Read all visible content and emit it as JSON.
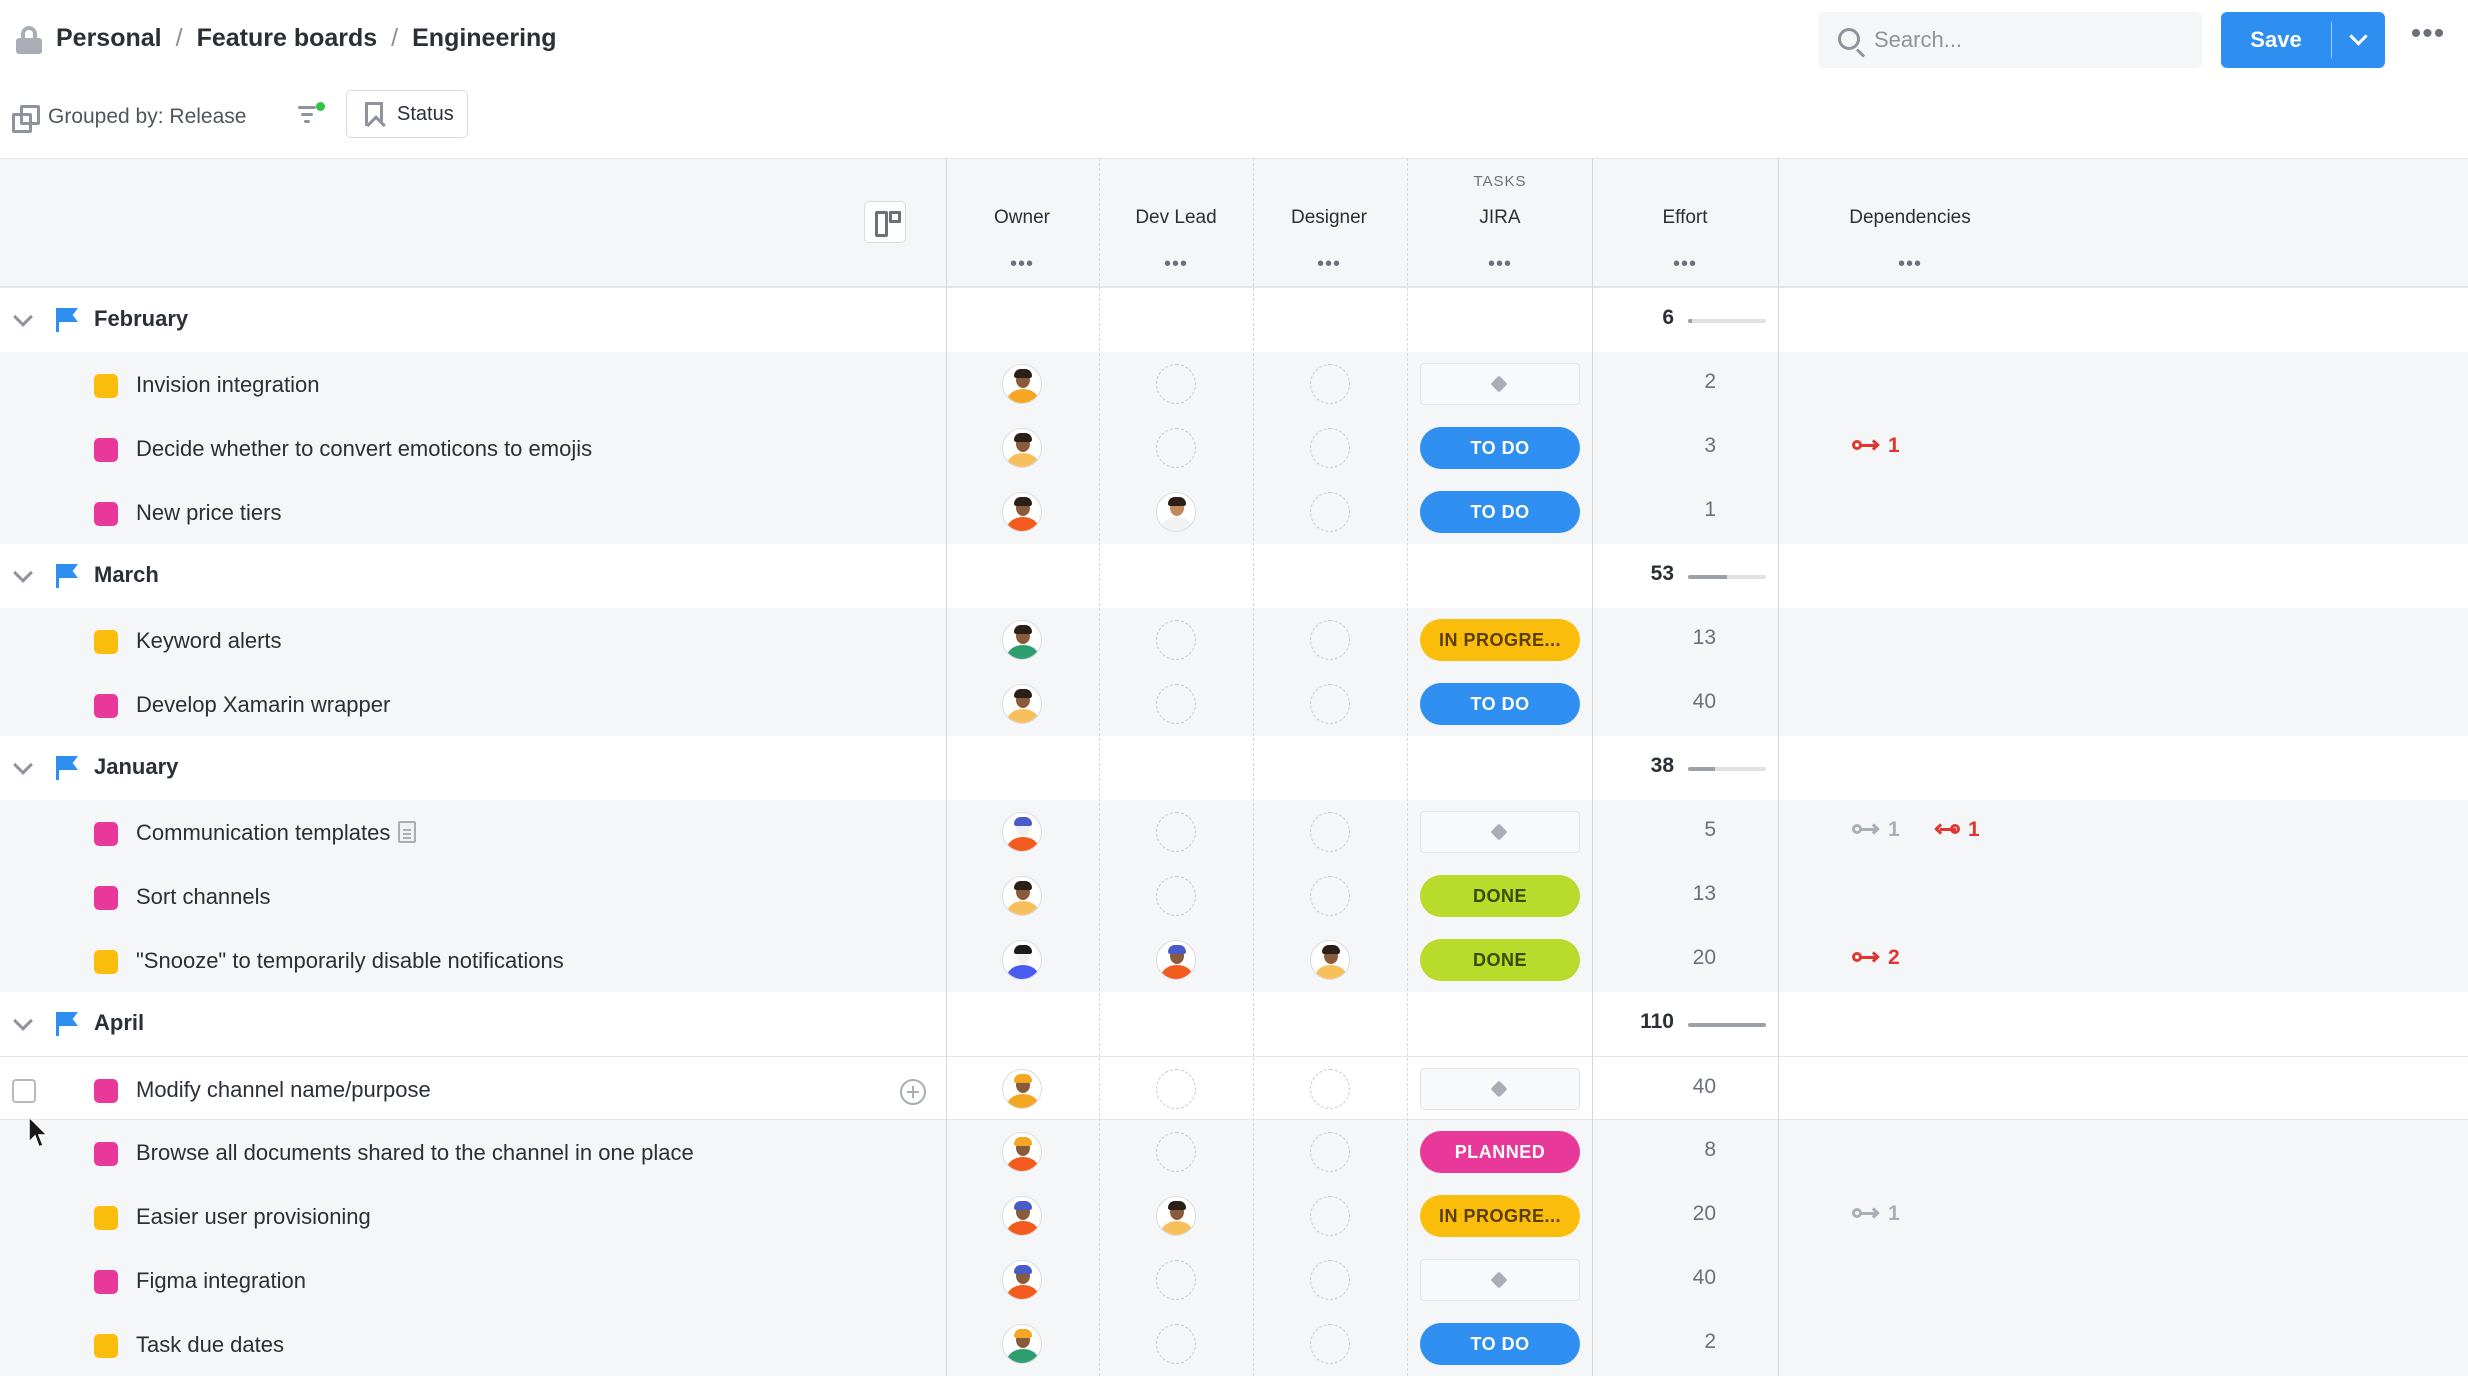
{
  "breadcrumb": [
    "Personal",
    "Feature boards",
    "Engineering"
  ],
  "search": {
    "placeholder": "Search...",
    "value": ""
  },
  "save_label": "Save",
  "toolbar": {
    "grouped_label": "Grouped by: Release",
    "status_label": "Status"
  },
  "columns": {
    "owner": "Owner",
    "dev_lead": "Dev Lead",
    "designer": "Designer",
    "tasks_group": "TASKS",
    "jira": "JIRA",
    "effort": "Effort",
    "dependencies": "Dependencies",
    "dots": "•••"
  },
  "colors": {
    "accent": "#2e8ff0",
    "pink_square": "#e8399b",
    "yellow_square": "#fbbd0c",
    "todo": "#2e8ff0",
    "in_progress": "#fbbd0c",
    "done": "#b9dc2c",
    "planned": "#e8399b",
    "dependency_red": "#e3342f",
    "dependency_gray": "#a8adb6"
  },
  "groups": [
    {
      "name": "February",
      "effort": "6",
      "effort_fraction": 0.05,
      "items": [
        {
          "name": "Invision integration",
          "color": "yellow",
          "owner": {
            "skin": "#8a5a3c",
            "shirt": "#f5a623",
            "hair": "#2b2018"
          },
          "dev_lead": null,
          "designer": null,
          "jira": null,
          "effort": "2",
          "deps": []
        },
        {
          "name": "Decide whether to convert emoticons to emojis",
          "color": "pink",
          "owner": {
            "skin": "#8a5a3c",
            "shirt": "#f7c05c",
            "hair": "#2b2018"
          },
          "dev_lead": null,
          "designer": null,
          "jira": "TO DO",
          "effort": "3",
          "deps": [
            {
              "dir": "out",
              "count": "1",
              "color": "red"
            }
          ]
        },
        {
          "name": "New price tiers",
          "color": "pink",
          "owner": {
            "skin": "#8a5a3c",
            "shirt": "#f25a1f",
            "hair": "#2b2018"
          },
          "dev_lead": {
            "skin": "#c08a5c",
            "shirt": "#f2f2f2",
            "hair": "#2b2018"
          },
          "designer": null,
          "jira": "TO DO",
          "effort": "1",
          "deps": []
        }
      ]
    },
    {
      "name": "March",
      "effort": "53",
      "effort_fraction": 0.5,
      "items": [
        {
          "name": "Keyword alerts",
          "color": "yellow",
          "owner": {
            "skin": "#8a5a3c",
            "shirt": "#2f9e6e",
            "hair": "#2b2018"
          },
          "dev_lead": null,
          "designer": null,
          "jira": "IN PROGRE...",
          "effort": "13",
          "deps": []
        },
        {
          "name": "Develop Xamarin wrapper",
          "color": "pink",
          "owner": {
            "skin": "#8a5a3c",
            "shirt": "#f7c05c",
            "hair": "#2b2018"
          },
          "dev_lead": null,
          "designer": null,
          "jira": "TO DO",
          "effort": "40",
          "deps": []
        }
      ]
    },
    {
      "name": "January",
      "effort": "38",
      "effort_fraction": 0.35,
      "items": [
        {
          "name": "Communication templates",
          "color": "pink",
          "doc_icon": true,
          "owner": {
            "skin": "#f0f0f0",
            "shirt": "#f25a1f",
            "hair": "#4a5cc7"
          },
          "dev_lead": null,
          "designer": null,
          "jira": null,
          "effort": "5",
          "deps": [
            {
              "dir": "out",
              "count": "1",
              "color": "gray"
            },
            {
              "dir": "in",
              "count": "1",
              "color": "red"
            }
          ]
        },
        {
          "name": "Sort channels",
          "color": "pink",
          "owner": {
            "skin": "#8a5a3c",
            "shirt": "#f7c05c",
            "hair": "#2b2018"
          },
          "dev_lead": null,
          "designer": null,
          "jira": "DONE",
          "effort": "13",
          "deps": []
        },
        {
          "name": "\"Snooze\" to temporarily disable notifications",
          "color": "yellow",
          "owner": {
            "skin": "#f0f0f0",
            "shirt": "#4a5cf0",
            "hair": "#1a1a1a"
          },
          "dev_lead": {
            "skin": "#8a5a3c",
            "shirt": "#f25a1f",
            "hair": "#4a5cc7"
          },
          "designer": {
            "skin": "#8a5a3c",
            "shirt": "#f7c05c",
            "hair": "#2b2018"
          },
          "jira": "DONE",
          "effort": "20",
          "deps": [
            {
              "dir": "out",
              "count": "2",
              "color": "red"
            }
          ]
        }
      ]
    },
    {
      "name": "April",
      "effort": "110",
      "effort_fraction": 1.0,
      "items": [
        {
          "name": "Modify channel name/purpose",
          "color": "pink",
          "hover": true,
          "owner": {
            "skin": "#8a5a3c",
            "shirt": "#f5a623",
            "hair": "#f5a623"
          },
          "dev_lead": null,
          "designer": null,
          "jira": null,
          "effort": "40",
          "deps": []
        },
        {
          "name": "Browse all documents shared to the channel in one place",
          "color": "pink",
          "owner": {
            "skin": "#8a5a3c",
            "shirt": "#f25a1f",
            "hair": "#f5a623"
          },
          "dev_lead": null,
          "designer": null,
          "jira": "PLANNED",
          "effort": "8",
          "deps": []
        },
        {
          "name": "Easier user provisioning",
          "color": "yellow",
          "owner": {
            "skin": "#8a5a3c",
            "shirt": "#f25a1f",
            "hair": "#4a5cc7"
          },
          "dev_lead": {
            "skin": "#8a5a3c",
            "shirt": "#f7c05c",
            "hair": "#2b2018"
          },
          "designer": null,
          "jira": "IN PROGRE...",
          "effort": "20",
          "deps": [
            {
              "dir": "out",
              "count": "1",
              "color": "gray"
            }
          ]
        },
        {
          "name": "Figma integration",
          "color": "pink",
          "owner": {
            "skin": "#8a5a3c",
            "shirt": "#f25a1f",
            "hair": "#4a5cc7"
          },
          "dev_lead": null,
          "designer": null,
          "jira": null,
          "effort": "40",
          "deps": []
        },
        {
          "name": "Task due dates",
          "color": "yellow",
          "owner": {
            "skin": "#8a5a3c",
            "shirt": "#2f9e6e",
            "hair": "#f5a623"
          },
          "dev_lead": null,
          "designer": null,
          "jira": "TO DO",
          "effort": "2",
          "deps": []
        }
      ]
    }
  ]
}
